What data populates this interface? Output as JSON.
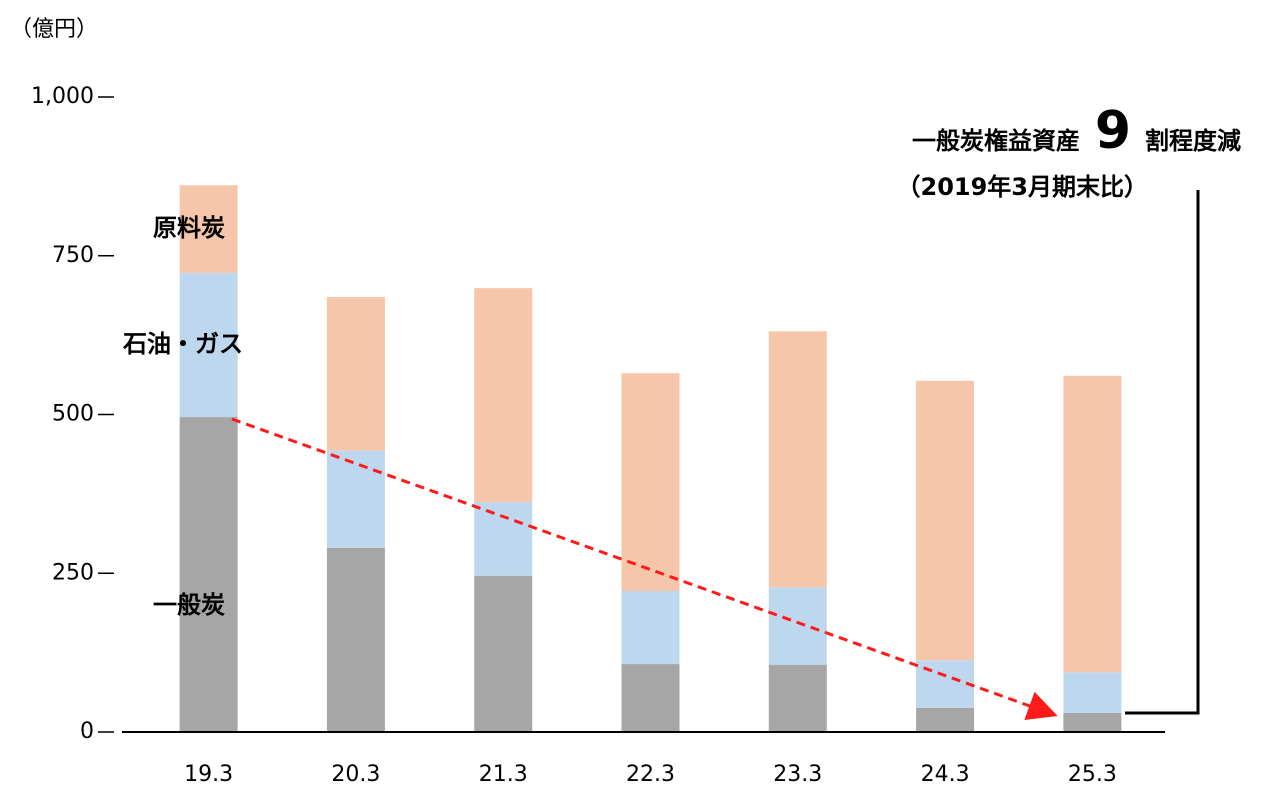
{
  "chart_data": {
    "type": "stacked_bar",
    "unit_label": "（億円）",
    "categories": [
      "19.3",
      "20.3",
      "21.3",
      "22.3",
      "23.3",
      "24.3",
      "25.3"
    ],
    "series": [
      {
        "name": "一般炭",
        "color": "#a6a6a6",
        "values": [
          496,
          290,
          246,
          107,
          106,
          38,
          30
        ]
      },
      {
        "name": "石油・ガス",
        "color": "#bdd7ee",
        "values": [
          227,
          153,
          116,
          115,
          122,
          75,
          64
        ]
      },
      {
        "name": "原料炭",
        "color": "#f6c6ab",
        "values": [
          138,
          242,
          337,
          343,
          403,
          440,
          467
        ]
      }
    ],
    "ylim": [
      0,
      1000
    ],
    "yticks": [
      0,
      250,
      500,
      750,
      {
        "value": 1000,
        "label": "1,000"
      }
    ],
    "annotation": {
      "before": "一般炭権益資産",
      "number": "9",
      "after": "割程度減",
      "note": "（2019年3月期末比）"
    }
  }
}
